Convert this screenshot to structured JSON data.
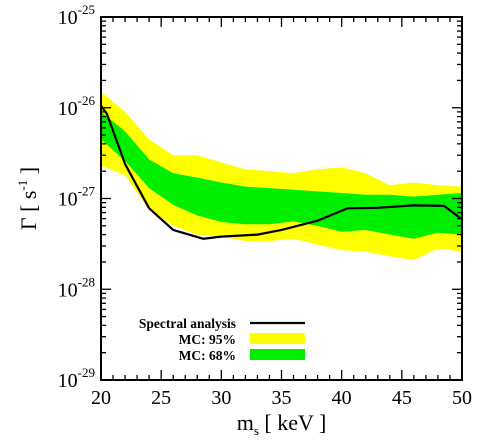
{
  "chart_data": {
    "type": "area",
    "xlabel": {
      "base": "m",
      "sub": "s",
      "rest": " [ keV ]"
    },
    "ylabel": {
      "main": "Γ [ s",
      "sup": "-1",
      "close": " ]"
    },
    "xlim": [
      20,
      50
    ],
    "ylim": [
      1e-29,
      1e-25
    ],
    "yscale": "log",
    "grid": false,
    "legend_placement": "bottom-left",
    "x_ticks": [
      {
        "value": 20,
        "label": "20"
      },
      {
        "value": 25,
        "label": "25"
      },
      {
        "value": 30,
        "label": "30"
      },
      {
        "value": 35,
        "label": "35"
      },
      {
        "value": 40,
        "label": "40"
      },
      {
        "value": 45,
        "label": "45"
      },
      {
        "value": 50,
        "label": "50"
      }
    ],
    "y_ticks": [
      {
        "value": 1e-29,
        "base": "10",
        "exp": "-29"
      },
      {
        "value": 1e-28,
        "base": "10",
        "exp": "-28"
      },
      {
        "value": 1e-27,
        "base": "10",
        "exp": "-27"
      },
      {
        "value": 1e-26,
        "base": "10",
        "exp": "-26"
      },
      {
        "value": 1e-25,
        "base": "10",
        "exp": "-25"
      }
    ],
    "series": [
      {
        "name": "MC: 95%",
        "kind": "band",
        "color": "#ffff00",
        "x": [
          20,
          22,
          24,
          26,
          28,
          30,
          32,
          34,
          36,
          38,
          40,
          42,
          44,
          46,
          48,
          50
        ],
        "lower": [
          2.3e-27,
          1.8e-27,
          7.5e-28,
          5e-28,
          4e-28,
          3.8e-28,
          3.4e-28,
          3.4e-28,
          3.6e-28,
          3.1e-28,
          2.7e-28,
          2.6e-28,
          2.3e-28,
          2.1e-28,
          2.8e-28,
          2.6e-28
        ],
        "upper": [
          1.5e-26,
          9e-27,
          4.5e-27,
          3e-27,
          3e-27,
          2.5e-27,
          2.1e-27,
          2e-27,
          1.9e-27,
          2.1e-27,
          2.2e-27,
          1.9e-27,
          1.4e-27,
          1.5e-27,
          1.4e-27,
          1.35e-27
        ]
      },
      {
        "name": "MC: 68%",
        "kind": "band",
        "color": "#00ee00",
        "x": [
          20,
          22,
          24,
          26,
          28,
          30,
          32,
          34,
          36,
          38,
          40,
          42,
          44,
          46,
          48,
          50
        ],
        "lower": [
          4.5e-27,
          2.6e-27,
          1.3e-27,
          8.5e-28,
          6.5e-28,
          5.5e-28,
          5.2e-28,
          5.2e-28,
          5.6e-28,
          5e-28,
          4.3e-28,
          4.5e-28,
          4e-28,
          3.6e-28,
          4.2e-28,
          4e-28
        ],
        "upper": [
          9e-27,
          5.5e-27,
          2.7e-27,
          1.9e-27,
          1.7e-27,
          1.5e-27,
          1.35e-27,
          1.3e-27,
          1.25e-27,
          1.2e-27,
          1.15e-27,
          1.1e-27,
          1.1e-27,
          1.05e-27,
          1.1e-27,
          1.15e-27
        ]
      },
      {
        "name": "Spectral analysis",
        "kind": "line",
        "color": "#000000",
        "x": [
          20,
          20.5,
          22,
          24,
          26,
          28.5,
          30,
          33,
          35,
          38,
          40.5,
          43,
          46,
          48.5,
          50
        ],
        "values": [
          1.05e-26,
          8.5e-27,
          2.4e-27,
          7.8e-28,
          4.5e-28,
          3.6e-28,
          3.8e-28,
          4e-28,
          4.5e-28,
          5.7e-28,
          7.8e-28,
          7.9e-28,
          8.4e-28,
          8.3e-28,
          5.9e-28
        ]
      }
    ],
    "legend": [
      {
        "label": "Spectral analysis",
        "kind": "line",
        "color": "#000000"
      },
      {
        "label": "MC: 95%",
        "kind": "box",
        "color": "#ffff00"
      },
      {
        "label": "MC: 68%",
        "kind": "box",
        "color": "#00ee00"
      }
    ]
  }
}
